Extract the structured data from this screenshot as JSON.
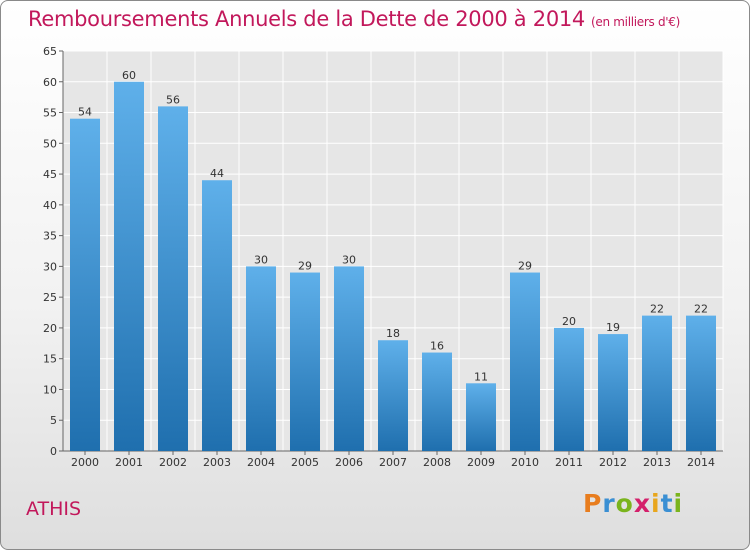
{
  "header": {
    "title": "Remboursements Annuels de la Dette de 2000 à 2014",
    "unit": "(en milliers d'€)"
  },
  "footer": {
    "city": "ATHIS",
    "logo_letters": [
      "P",
      "r",
      "o",
      "x",
      "i",
      "t",
      "i"
    ]
  },
  "colors": {
    "title": "#c2185b",
    "bar_top": "#5fb0ea",
    "bar_bottom": "#1f6fae",
    "logo": [
      "#e87d1e",
      "#3a8fd3",
      "#7ab41d",
      "#d4206b",
      "#e8a61e",
      "#3a8fd3",
      "#7ab41d"
    ]
  },
  "chart_data": {
    "type": "bar",
    "title": "Remboursements Annuels de la Dette de 2000 à 2014",
    "categories": [
      "2000",
      "2001",
      "2002",
      "2003",
      "2004",
      "2005",
      "2006",
      "2007",
      "2008",
      "2009",
      "2010",
      "2011",
      "2012",
      "2013",
      "2014"
    ],
    "values": [
      54,
      60,
      56,
      44,
      30,
      29,
      30,
      18,
      16,
      11,
      29,
      20,
      19,
      22,
      22
    ],
    "xlabel": "",
    "ylabel": "",
    "ylim": [
      0,
      65
    ],
    "yticks": [
      0,
      5,
      10,
      15,
      20,
      25,
      30,
      35,
      40,
      45,
      50,
      55,
      60,
      65
    ],
    "grid": true
  }
}
